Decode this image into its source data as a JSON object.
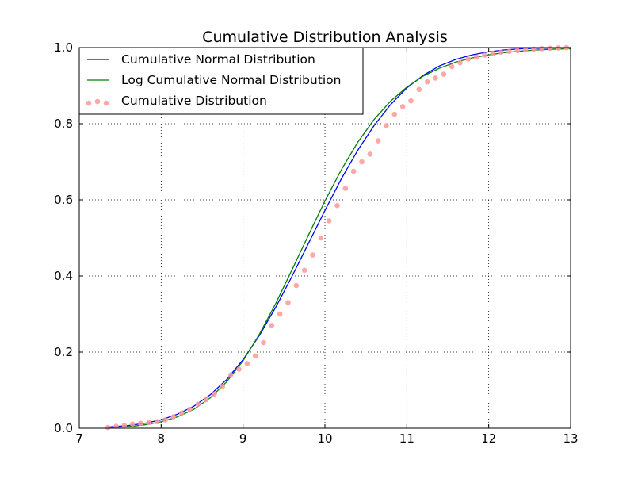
{
  "chart_data": {
    "type": "line",
    "title": "Cumulative Distribution Analysis",
    "xlabel": "",
    "ylabel": "",
    "xlim": [
      7,
      13
    ],
    "ylim": [
      0.0,
      1.0
    ],
    "x_ticks": [
      7,
      8,
      9,
      10,
      11,
      12,
      13
    ],
    "y_ticks": [
      0.0,
      0.2,
      0.4,
      0.6,
      0.8,
      1.0
    ],
    "x_tick_labels": [
      "7",
      "8",
      "9",
      "10",
      "11",
      "12",
      "13"
    ],
    "y_tick_labels": [
      "0.0",
      "0.2",
      "0.4",
      "0.6",
      "0.8",
      "1.0"
    ],
    "grid": true,
    "legend_position": "top-left",
    "series": [
      {
        "name": "Cumulative Normal Distribution",
        "kind": "line",
        "color": "#0000ff",
        "x": [
          7.35,
          7.6,
          7.8,
          8.0,
          8.2,
          8.4,
          8.6,
          8.8,
          9.0,
          9.2,
          9.4,
          9.6,
          9.8,
          10.0,
          10.2,
          10.4,
          10.6,
          10.8,
          11.0,
          11.2,
          11.4,
          11.6,
          11.8,
          12.0,
          12.2,
          12.4,
          12.6,
          12.8,
          13.0
        ],
        "y": [
          0.003,
          0.007,
          0.013,
          0.022,
          0.037,
          0.058,
          0.088,
          0.128,
          0.18,
          0.244,
          0.318,
          0.4,
          0.486,
          0.572,
          0.655,
          0.73,
          0.795,
          0.85,
          0.894,
          0.927,
          0.952,
          0.969,
          0.981,
          0.989,
          0.994,
          0.997,
          0.998,
          0.999,
          1.0
        ]
      },
      {
        "name": "Log Cumulative Normal Distribution",
        "kind": "line",
        "color": "#008000",
        "x": [
          7.35,
          7.6,
          7.8,
          8.0,
          8.2,
          8.4,
          8.6,
          8.8,
          9.0,
          9.2,
          9.4,
          9.6,
          9.8,
          10.0,
          10.2,
          10.4,
          10.6,
          10.8,
          11.0,
          11.2,
          11.4,
          11.6,
          11.8,
          12.0,
          12.2,
          12.4,
          12.6,
          12.8,
          13.0
        ],
        "y": [
          0.0015,
          0.004,
          0.009,
          0.017,
          0.03,
          0.05,
          0.08,
          0.122,
          0.177,
          0.247,
          0.328,
          0.417,
          0.508,
          0.597,
          0.679,
          0.751,
          0.811,
          0.859,
          0.896,
          0.925,
          0.946,
          0.962,
          0.973,
          0.981,
          0.987,
          0.991,
          0.994,
          0.996,
          0.997
        ]
      },
      {
        "name": "Cumulative Distribution",
        "kind": "scatter",
        "color": "#ff9999",
        "x": [
          7.35,
          7.45,
          7.55,
          7.65,
          7.75,
          7.85,
          7.95,
          8.05,
          8.15,
          8.25,
          8.35,
          8.45,
          8.55,
          8.65,
          8.75,
          8.85,
          8.95,
          9.05,
          9.15,
          9.25,
          9.35,
          9.45,
          9.55,
          9.65,
          9.75,
          9.85,
          9.95,
          10.05,
          10.15,
          10.25,
          10.35,
          10.45,
          10.55,
          10.65,
          10.75,
          10.85,
          10.95,
          11.05,
          11.15,
          11.25,
          11.35,
          11.45,
          11.55,
          11.65,
          11.75,
          11.85,
          11.95,
          12.05,
          12.15,
          12.25,
          12.35,
          12.45,
          12.55,
          12.65,
          12.75,
          12.85,
          12.95
        ],
        "y": [
          0.002,
          0.005,
          0.008,
          0.011,
          0.013,
          0.015,
          0.017,
          0.022,
          0.03,
          0.04,
          0.05,
          0.063,
          0.075,
          0.09,
          0.11,
          0.14,
          0.155,
          0.17,
          0.19,
          0.225,
          0.27,
          0.3,
          0.33,
          0.375,
          0.415,
          0.455,
          0.5,
          0.545,
          0.585,
          0.63,
          0.675,
          0.7,
          0.72,
          0.755,
          0.795,
          0.825,
          0.845,
          0.86,
          0.89,
          0.91,
          0.92,
          0.93,
          0.95,
          0.96,
          0.97,
          0.975,
          0.98,
          0.985,
          0.988,
          0.99,
          0.992,
          0.994,
          0.996,
          0.997,
          0.998,
          0.999,
          1.0
        ]
      }
    ]
  }
}
